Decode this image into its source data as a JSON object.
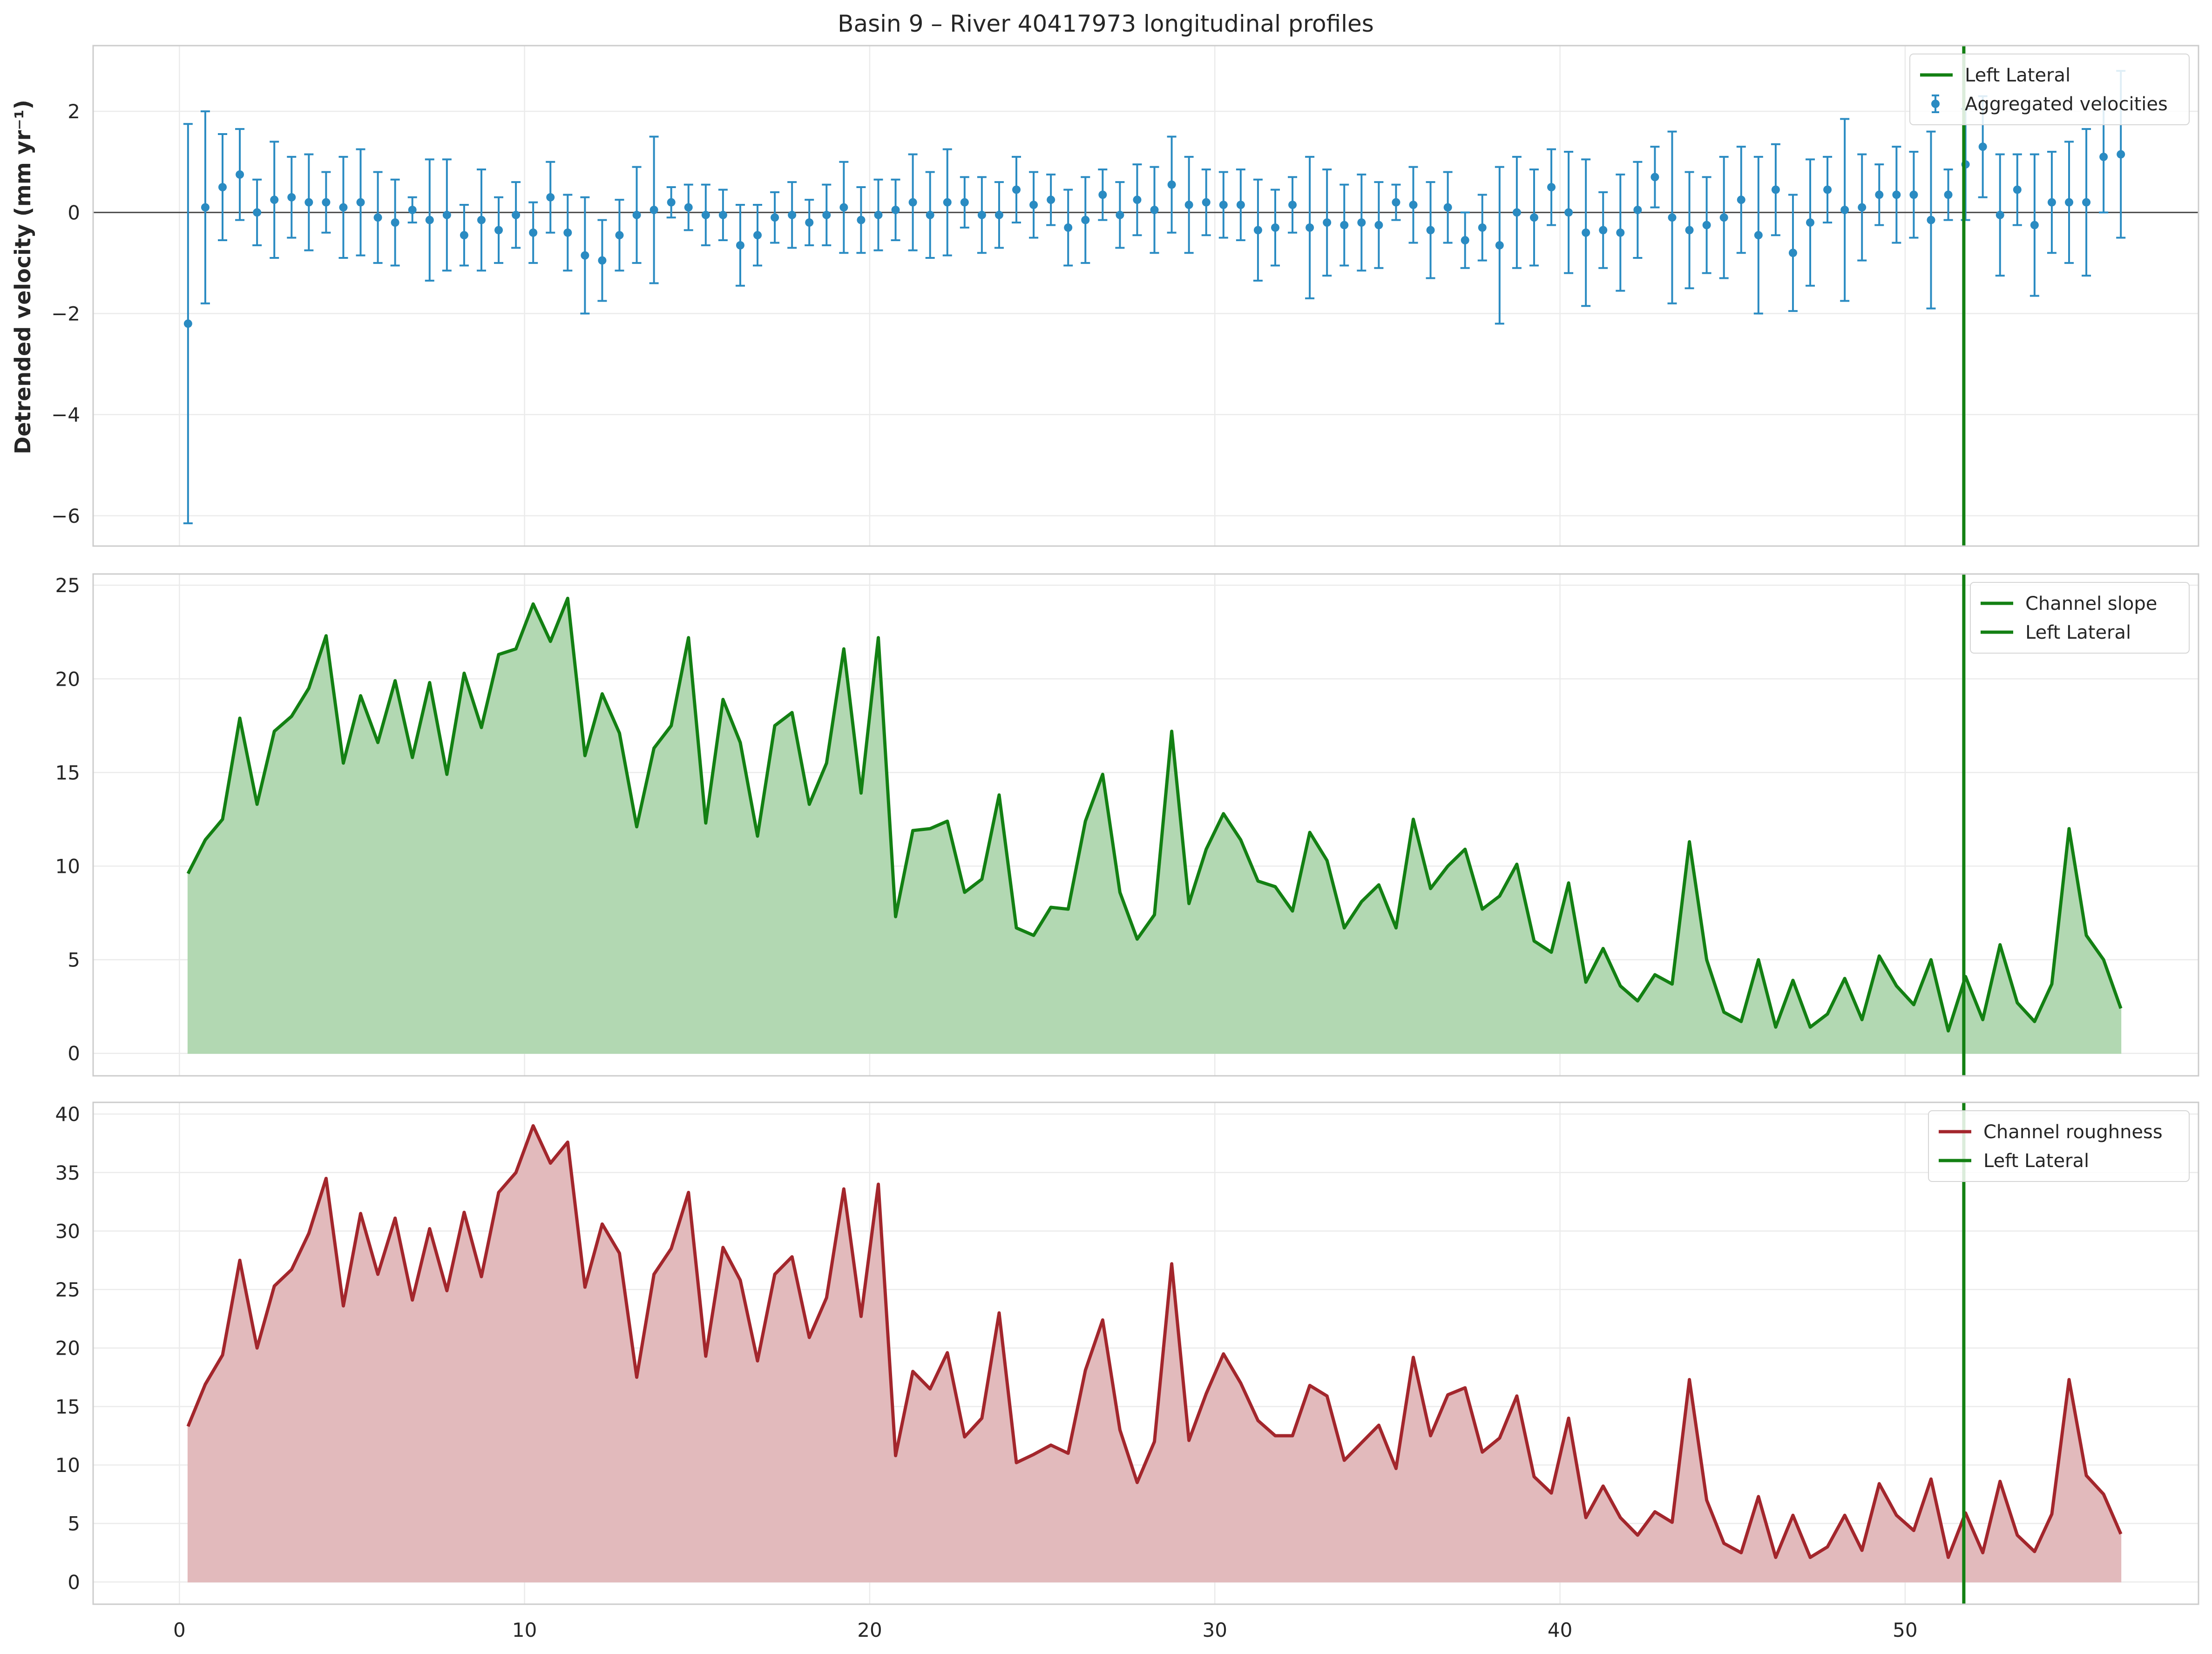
{
  "figure_title": "Basin 9 – River 40417973 longitudinal profiles",
  "colors": {
    "velocity": "#2a8bc2",
    "slope_line": "#138013",
    "slope_fill": "#b2d8b2",
    "roughness_line": "#a3262c",
    "roughness_fill": "#e2babc",
    "lateral": "#138013",
    "zero_line": "#4d4d4d",
    "grid": "#ebebeb",
    "spine": "#cccccc"
  },
  "chart_data": [
    {
      "type": "scatter",
      "name": "velocity-panel",
      "ylabel": "Detrended velocity (mm yr⁻¹)",
      "xlim": [
        -2.5,
        58.5
      ],
      "ylim": [
        -6.6,
        3.3
      ],
      "yticks": [
        -6,
        -4,
        -2,
        0,
        2
      ],
      "ytick_labels": [
        "−6",
        "−4",
        "−2",
        "0",
        "2"
      ],
      "xticks": [
        0,
        10,
        20,
        30,
        40,
        50
      ],
      "grid": true,
      "zero_line": true,
      "legend_position": "top-right",
      "legend": [
        "Left Lateral",
        "Aggregated velocities"
      ],
      "lateral_x": 51.7,
      "series": [
        {
          "name": "Aggregated velocities",
          "x": [
            0.25,
            0.75,
            1.25,
            1.75,
            2.25,
            2.75,
            3.25,
            3.75,
            4.25,
            4.75,
            5.25,
            5.75,
            6.25,
            6.75,
            7.25,
            7.75,
            8.25,
            8.75,
            9.25,
            9.75,
            10.25,
            10.75,
            11.25,
            11.75,
            12.25,
            12.75,
            13.25,
            13.75,
            14.25,
            14.75,
            15.25,
            15.75,
            16.25,
            16.75,
            17.25,
            17.75,
            18.25,
            18.75,
            19.25,
            19.75,
            20.25,
            20.75,
            21.25,
            21.75,
            22.25,
            22.75,
            23.25,
            23.75,
            24.25,
            24.75,
            25.25,
            25.75,
            26.25,
            26.75,
            27.25,
            27.75,
            28.25,
            28.75,
            29.25,
            29.75,
            30.25,
            30.75,
            31.25,
            31.75,
            32.25,
            32.75,
            33.25,
            33.75,
            34.25,
            34.75,
            35.25,
            35.75,
            36.25,
            36.75,
            37.25,
            37.75,
            38.25,
            38.75,
            39.25,
            39.75,
            40.25,
            40.75,
            41.25,
            41.75,
            42.25,
            42.75,
            43.25,
            43.75,
            44.25,
            44.75,
            45.25,
            45.75,
            46.25,
            46.75,
            47.25,
            47.75,
            48.25,
            48.75,
            49.25,
            49.75,
            50.25,
            50.75,
            51.25,
            51.75,
            52.25,
            52.75,
            53.25,
            53.75,
            54.25,
            54.75,
            55.25,
            55.75,
            56.25
          ],
          "y": [
            -2.2,
            0.1,
            0.5,
            0.75,
            0.0,
            0.25,
            0.3,
            0.2,
            0.2,
            0.1,
            0.2,
            -0.1,
            -0.2,
            0.05,
            -0.15,
            -0.05,
            -0.45,
            -0.15,
            -0.35,
            -0.05,
            -0.4,
            0.3,
            -0.4,
            -0.85,
            -0.95,
            -0.45,
            -0.05,
            0.05,
            0.2,
            0.1,
            -0.05,
            -0.05,
            -0.65,
            -0.45,
            -0.1,
            -0.05,
            -0.2,
            -0.05,
            0.1,
            -0.15,
            -0.05,
            0.05,
            0.2,
            -0.05,
            0.2,
            0.2,
            -0.05,
            -0.05,
            0.45,
            0.15,
            0.25,
            -0.3,
            -0.15,
            0.35,
            -0.05,
            0.25,
            0.05,
            0.55,
            0.15,
            0.2,
            0.15,
            0.15,
            -0.35,
            -0.3,
            0.15,
            -0.3,
            -0.2,
            -0.25,
            -0.2,
            -0.25,
            0.2,
            0.15,
            -0.35,
            0.1,
            -0.55,
            -0.3,
            -0.65,
            0.0,
            -0.1,
            0.5,
            0.0,
            -0.4,
            -0.35,
            -0.4,
            0.05,
            0.7,
            -0.1,
            -0.35,
            -0.25,
            -0.1,
            0.25,
            -0.45,
            0.45,
            -0.8,
            -0.2,
            0.45,
            0.05,
            0.1,
            0.35,
            0.35,
            0.35,
            -0.15,
            0.35,
            0.95,
            1.3,
            -0.05,
            0.45,
            -0.25,
            0.2,
            0.2,
            0.2,
            1.1,
            1.15
          ],
          "error": [
            3.95,
            1.9,
            1.05,
            0.9,
            0.65,
            1.15,
            0.8,
            0.95,
            0.6,
            1.0,
            1.05,
            0.9,
            0.85,
            0.25,
            1.2,
            1.1,
            0.6,
            1.0,
            0.65,
            0.65,
            0.6,
            0.7,
            0.75,
            1.15,
            0.8,
            0.7,
            0.95,
            1.45,
            0.3,
            0.45,
            0.6,
            0.5,
            0.8,
            0.6,
            0.5,
            0.65,
            0.45,
            0.6,
            0.9,
            0.65,
            0.7,
            0.6,
            0.95,
            0.85,
            1.05,
            0.5,
            0.75,
            0.65,
            0.65,
            0.65,
            0.5,
            0.75,
            0.85,
            0.5,
            0.65,
            0.7,
            0.85,
            0.95,
            0.95,
            0.65,
            0.65,
            0.7,
            1.0,
            0.75,
            0.55,
            1.4,
            1.05,
            0.8,
            0.95,
            0.85,
            0.35,
            0.75,
            0.95,
            0.7,
            0.55,
            0.65,
            1.55,
            1.1,
            0.95,
            0.75,
            1.2,
            1.45,
            0.75,
            1.15,
            0.95,
            0.6,
            1.7,
            1.15,
            0.95,
            1.2,
            1.05,
            1.55,
            0.9,
            1.15,
            1.25,
            0.65,
            1.8,
            1.05,
            0.6,
            0.95,
            0.85,
            1.75,
            0.5,
            1.1,
            1.0,
            1.2,
            0.7,
            1.4,
            1.0,
            1.2,
            1.45,
            1.1,
            1.65
          ]
        }
      ]
    },
    {
      "type": "area",
      "name": "slope-panel",
      "xlim": [
        -2.5,
        58.5
      ],
      "ylim": [
        -1.2,
        25.6
      ],
      "yticks": [
        0,
        5,
        10,
        15,
        20,
        25
      ],
      "xticks": [
        0,
        10,
        20,
        30,
        40,
        50
      ],
      "grid": true,
      "legend_position": "top-right",
      "legend": [
        "Channel slope",
        "Left Lateral"
      ],
      "lateral_x": 51.7,
      "series": [
        {
          "name": "Channel slope",
          "x": [
            0.25,
            0.75,
            1.25,
            1.75,
            2.25,
            2.75,
            3.25,
            3.75,
            4.25,
            4.75,
            5.25,
            5.75,
            6.25,
            6.75,
            7.25,
            7.75,
            8.25,
            8.75,
            9.25,
            9.75,
            10.25,
            10.75,
            11.25,
            11.75,
            12.25,
            12.75,
            13.25,
            13.75,
            14.25,
            14.75,
            15.25,
            15.75,
            16.25,
            16.75,
            17.25,
            17.75,
            18.25,
            18.75,
            19.25,
            19.75,
            20.25,
            20.75,
            21.25,
            21.75,
            22.25,
            22.75,
            23.25,
            23.75,
            24.25,
            24.75,
            25.25,
            25.75,
            26.25,
            26.75,
            27.25,
            27.75,
            28.25,
            28.75,
            29.25,
            29.75,
            30.25,
            30.75,
            31.25,
            31.75,
            32.25,
            32.75,
            33.25,
            33.75,
            34.25,
            34.75,
            35.25,
            35.75,
            36.25,
            36.75,
            37.25,
            37.75,
            38.25,
            38.75,
            39.25,
            39.75,
            40.25,
            40.75,
            41.25,
            41.75,
            42.25,
            42.75,
            43.25,
            43.75,
            44.25,
            44.75,
            45.25,
            45.75,
            46.25,
            46.75,
            47.25,
            47.75,
            48.25,
            48.75,
            49.25,
            49.75,
            50.25,
            50.75,
            51.25,
            51.75,
            52.25,
            52.75,
            53.25,
            53.75,
            54.25,
            54.75,
            55.25,
            55.75,
            56.25
          ],
          "y": [
            9.6,
            11.4,
            12.5,
            17.9,
            13.3,
            17.2,
            18.0,
            19.5,
            22.3,
            15.5,
            19.1,
            16.6,
            19.9,
            15.8,
            19.8,
            14.9,
            20.3,
            17.4,
            21.3,
            21.6,
            24.0,
            22.0,
            24.3,
            15.9,
            19.2,
            17.1,
            12.1,
            16.3,
            17.5,
            22.2,
            12.3,
            18.9,
            16.6,
            11.6,
            17.5,
            18.2,
            13.3,
            15.5,
            21.6,
            13.9,
            22.2,
            7.3,
            11.9,
            12.0,
            12.4,
            8.6,
            9.3,
            13.8,
            6.7,
            6.3,
            7.8,
            7.7,
            12.4,
            14.9,
            8.6,
            6.1,
            7.4,
            17.2,
            8.0,
            10.9,
            12.8,
            11.4,
            9.2,
            8.9,
            7.6,
            11.8,
            10.3,
            6.7,
            8.1,
            9.0,
            6.7,
            12.5,
            8.8,
            10.0,
            10.9,
            7.7,
            8.4,
            10.1,
            6.0,
            5.4,
            9.1,
            3.8,
            5.6,
            3.6,
            2.8,
            4.2,
            3.7,
            11.3,
            5.0,
            2.2,
            1.7,
            5.0,
            1.4,
            3.9,
            1.4,
            2.1,
            4.0,
            1.8,
            5.2,
            3.6,
            2.6,
            5.0,
            1.2,
            4.1,
            1.8,
            5.8,
            2.7,
            1.7,
            3.7,
            12.0,
            6.3,
            5.0,
            2.4
          ]
        }
      ]
    },
    {
      "type": "area",
      "name": "roughness-panel",
      "xlim": [
        -2.5,
        58.5
      ],
      "ylim": [
        -1.9,
        41.0
      ],
      "yticks": [
        0,
        5,
        10,
        15,
        20,
        25,
        30,
        35,
        40
      ],
      "xticks": [
        0,
        10,
        20,
        30,
        40,
        50
      ],
      "grid": true,
      "legend_position": "top-right",
      "legend": [
        "Channel roughness",
        "Left Lateral"
      ],
      "lateral_x": 51.7,
      "series": [
        {
          "name": "Channel roughness",
          "x": [
            0.25,
            0.75,
            1.25,
            1.75,
            2.25,
            2.75,
            3.25,
            3.75,
            4.25,
            4.75,
            5.25,
            5.75,
            6.25,
            6.75,
            7.25,
            7.75,
            8.25,
            8.75,
            9.25,
            9.75,
            10.25,
            10.75,
            11.25,
            11.75,
            12.25,
            12.75,
            13.25,
            13.75,
            14.25,
            14.75,
            15.25,
            15.75,
            16.25,
            16.75,
            17.25,
            17.75,
            18.25,
            18.75,
            19.25,
            19.75,
            20.25,
            20.75,
            21.25,
            21.75,
            22.25,
            22.75,
            23.25,
            23.75,
            24.25,
            24.75,
            25.25,
            25.75,
            26.25,
            26.75,
            27.25,
            27.75,
            28.25,
            28.75,
            29.25,
            29.75,
            30.25,
            30.75,
            31.25,
            31.75,
            32.25,
            32.75,
            33.25,
            33.75,
            34.25,
            34.75,
            35.25,
            35.75,
            36.25,
            36.75,
            37.25,
            37.75,
            38.25,
            38.75,
            39.25,
            39.75,
            40.25,
            40.75,
            41.25,
            41.75,
            42.25,
            42.75,
            43.25,
            43.75,
            44.25,
            44.75,
            45.25,
            45.75,
            46.25,
            46.75,
            47.25,
            47.75,
            48.25,
            48.75,
            49.25,
            49.75,
            50.25,
            50.75,
            51.25,
            51.75,
            52.25,
            52.75,
            53.25,
            53.75,
            54.25,
            54.75,
            55.25,
            55.75,
            56.25
          ],
          "y": [
            13.3,
            16.9,
            19.4,
            27.5,
            20.0,
            25.3,
            26.7,
            29.8,
            34.5,
            23.6,
            31.5,
            26.3,
            31.1,
            24.1,
            30.2,
            24.9,
            31.6,
            26.1,
            33.3,
            35.0,
            39.0,
            35.8,
            37.6,
            25.2,
            30.6,
            28.1,
            17.5,
            26.3,
            28.5,
            33.3,
            19.3,
            28.6,
            25.8,
            18.9,
            26.3,
            27.8,
            20.9,
            24.3,
            33.6,
            22.7,
            34.0,
            10.8,
            18.0,
            16.5,
            19.6,
            12.4,
            14.0,
            23.0,
            10.2,
            10.9,
            11.7,
            11.0,
            18.1,
            22.4,
            13.0,
            8.5,
            12.0,
            27.2,
            12.1,
            16.1,
            19.5,
            17.0,
            13.8,
            12.5,
            12.5,
            16.8,
            15.9,
            10.4,
            11.9,
            13.4,
            9.7,
            19.2,
            12.5,
            16.0,
            16.6,
            11.1,
            12.3,
            15.9,
            9.0,
            7.6,
            14.0,
            5.5,
            8.2,
            5.5,
            4.0,
            6.0,
            5.1,
            17.3,
            7.0,
            3.3,
            2.5,
            7.3,
            2.1,
            5.7,
            2.1,
            3.0,
            5.7,
            2.7,
            8.4,
            5.7,
            4.4,
            8.8,
            2.1,
            5.9,
            2.5,
            8.6,
            4.0,
            2.6,
            5.8,
            17.3,
            9.1,
            7.5,
            4.1
          ]
        }
      ]
    }
  ]
}
